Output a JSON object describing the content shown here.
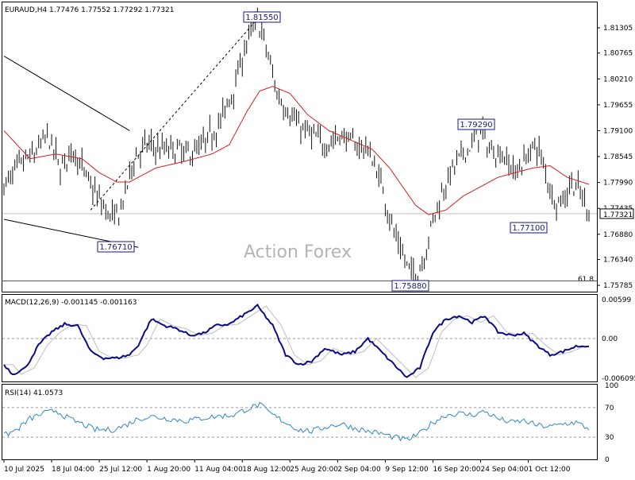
{
  "chart_data": [
    {
      "type": "candlestick",
      "symbol_header": "EURAUD,H4  1.77476 1.77552 1.77292 1.77321",
      "ylim": [
        1.7565,
        1.8185
      ],
      "y_ticks": [
        "1.81305",
        "1.80765",
        "1.80210",
        "1.79655",
        "1.79100",
        "1.78545",
        "1.77990",
        "1.77435",
        "1.76880",
        "1.76340",
        "1.75785"
      ],
      "current_price": "1.77321",
      "fib_label": "61.8",
      "fib_level": 1.7588,
      "watermark": "Action Forex",
      "annotations": [
        {
          "label": "1.81550",
          "value": 1.8155
        },
        {
          "label": "1.76710",
          "value": 1.7671
        },
        {
          "label": "1.75880",
          "value": 1.7588
        },
        {
          "label": "1.79290",
          "value": 1.7929
        },
        {
          "label": "1.77100",
          "value": 1.771
        }
      ],
      "close_keypoints": [
        [
          0,
          1.779
        ],
        [
          8,
          1.784
        ],
        [
          14,
          1.786
        ],
        [
          20,
          1.79
        ],
        [
          26,
          1.783
        ],
        [
          32,
          1.787
        ],
        [
          38,
          1.781
        ],
        [
          44,
          1.776
        ],
        [
          50,
          1.772
        ],
        [
          54,
          1.774
        ],
        [
          60,
          1.785
        ],
        [
          66,
          1.788
        ],
        [
          72,
          1.787
        ],
        [
          78,
          1.787
        ],
        [
          86,
          1.786
        ],
        [
          92,
          1.788
        ],
        [
          100,
          1.793
        ],
        [
          106,
          1.8
        ],
        [
          112,
          1.81
        ],
        [
          117,
          1.815
        ],
        [
          122,
          1.807
        ],
        [
          126,
          1.799
        ],
        [
          130,
          1.796
        ],
        [
          136,
          1.792
        ],
        [
          142,
          1.79
        ],
        [
          148,
          1.788
        ],
        [
          156,
          1.79
        ],
        [
          162,
          1.788
        ],
        [
          168,
          1.787
        ],
        [
          174,
          1.78
        ],
        [
          180,
          1.769
        ],
        [
          186,
          1.762
        ],
        [
          190,
          1.76
        ],
        [
          194,
          1.764
        ],
        [
          198,
          1.772
        ],
        [
          204,
          1.78
        ],
        [
          210,
          1.785
        ],
        [
          216,
          1.788
        ],
        [
          220,
          1.791
        ],
        [
          224,
          1.787
        ],
        [
          230,
          1.786
        ],
        [
          236,
          1.782
        ],
        [
          242,
          1.786
        ],
        [
          246,
          1.788
        ],
        [
          250,
          1.782
        ],
        [
          254,
          1.776
        ],
        [
          258,
          1.776
        ],
        [
          262,
          1.78
        ],
        [
          266,
          1.7775
        ],
        [
          270,
          1.7735
        ]
      ],
      "ma_keypoints": [
        [
          0,
          1.791
        ],
        [
          12,
          1.785
        ],
        [
          24,
          1.786
        ],
        [
          36,
          1.785
        ],
        [
          44,
          1.782
        ],
        [
          52,
          1.78
        ],
        [
          58,
          1.78
        ],
        [
          70,
          1.783
        ],
        [
          84,
          1.7845
        ],
        [
          96,
          1.786
        ],
        [
          104,
          1.788
        ],
        [
          112,
          1.795
        ],
        [
          118,
          1.7995
        ],
        [
          124,
          1.8005
        ],
        [
          132,
          1.799
        ],
        [
          140,
          1.7945
        ],
        [
          150,
          1.791
        ],
        [
          160,
          1.789
        ],
        [
          170,
          1.787
        ],
        [
          178,
          1.783
        ],
        [
          184,
          1.779
        ],
        [
          190,
          1.775
        ],
        [
          196,
          1.773
        ],
        [
          204,
          1.774
        ],
        [
          212,
          1.777
        ],
        [
          220,
          1.779
        ],
        [
          228,
          1.781
        ],
        [
          236,
          1.782
        ],
        [
          244,
          1.783
        ],
        [
          252,
          1.7835
        ],
        [
          260,
          1.781
        ],
        [
          270,
          1.7795
        ]
      ],
      "trendlines": [
        {
          "name": "upper-channel",
          "points": [
            [
              0,
              1.807
            ],
            [
              58,
              1.791
            ]
          ]
        },
        {
          "name": "lower-channel",
          "points": [
            [
              0,
              1.772
            ],
            [
              62,
              1.766
            ]
          ]
        },
        {
          "name": "dashed-up",
          "points": [
            [
              40,
              1.774
            ],
            [
              118,
              1.8155
            ]
          ]
        }
      ],
      "x_labels": [
        "10 Jul 2025",
        "18 Jul 04:00",
        "25 Jul 12:00",
        "1 Aug 20:00",
        "11 Aug 04:00",
        "18 Aug 12:00",
        "25 Aug 20:00",
        "2 Sep 04:00",
        "9 Sep 12:00",
        "16 Sep 20:00",
        "24 Sep 04:00",
        "1 Oct 12:00"
      ],
      "x_label_bars": [
        0,
        22,
        44,
        66,
        88,
        110,
        132,
        154,
        176,
        198,
        220,
        242
      ],
      "n_bars": 271
    },
    {
      "type": "line",
      "name_header": "MACD(12,26,9) -0.001145 -0.001163",
      "ylim": [
        -0.0066,
        0.0066
      ],
      "y_ticks": [
        "0.00599",
        "0.00",
        "-0.006095"
      ],
      "macd_keypoints": [
        [
          0,
          -0.004
        ],
        [
          4,
          -0.0055
        ],
        [
          10,
          -0.0045
        ],
        [
          16,
          -0.001
        ],
        [
          22,
          0.001
        ],
        [
          28,
          0.0022
        ],
        [
          34,
          0.002
        ],
        [
          40,
          -0.002
        ],
        [
          46,
          -0.003
        ],
        [
          52,
          -0.003
        ],
        [
          58,
          -0.0025
        ],
        [
          62,
          -0.001
        ],
        [
          68,
          0.003
        ],
        [
          74,
          0.002
        ],
        [
          80,
          0.0015
        ],
        [
          86,
          0.0005
        ],
        [
          92,
          0.0008
        ],
        [
          98,
          0.002
        ],
        [
          104,
          0.0022
        ],
        [
          110,
          0.0035
        ],
        [
          117,
          0.005
        ],
        [
          124,
          0.002
        ],
        [
          130,
          -0.0025
        ],
        [
          136,
          -0.004
        ],
        [
          142,
          -0.0035
        ],
        [
          148,
          -0.0015
        ],
        [
          156,
          -0.0025
        ],
        [
          162,
          -0.002
        ],
        [
          168,
          0.0
        ],
        [
          174,
          -0.002
        ],
        [
          180,
          -0.004
        ],
        [
          186,
          -0.006
        ],
        [
          192,
          -0.0045
        ],
        [
          198,
          0.001
        ],
        [
          204,
          0.003
        ],
        [
          210,
          0.0035
        ],
        [
          216,
          0.0025
        ],
        [
          222,
          0.0035
        ],
        [
          228,
          0.001
        ],
        [
          234,
          0.0005
        ],
        [
          240,
          0.0008
        ],
        [
          246,
          -0.001
        ],
        [
          252,
          -0.0025
        ],
        [
          258,
          -0.002
        ],
        [
          264,
          -0.0012
        ],
        [
          270,
          -0.0011
        ]
      ],
      "signal_lag": 4
    },
    {
      "type": "line",
      "name_header": "RSI(14) 41.0573",
      "ylim": [
        0,
        100
      ],
      "y_ticks": [
        "100",
        "70",
        "30",
        "0"
      ],
      "levels": [
        70,
        30
      ],
      "rsi_keypoints": [
        [
          0,
          32
        ],
        [
          6,
          40
        ],
        [
          12,
          55
        ],
        [
          18,
          62
        ],
        [
          24,
          66
        ],
        [
          30,
          55
        ],
        [
          36,
          48
        ],
        [
          42,
          40
        ],
        [
          50,
          40
        ],
        [
          56,
          46
        ],
        [
          62,
          55
        ],
        [
          68,
          58
        ],
        [
          76,
          55
        ],
        [
          84,
          52
        ],
        [
          92,
          56
        ],
        [
          98,
          58
        ],
        [
          106,
          60
        ],
        [
          112,
          68
        ],
        [
          118,
          74
        ],
        [
          124,
          60
        ],
        [
          130,
          50
        ],
        [
          136,
          40
        ],
        [
          142,
          38
        ],
        [
          150,
          45
        ],
        [
          156,
          48
        ],
        [
          162,
          42
        ],
        [
          168,
          38
        ],
        [
          174,
          35
        ],
        [
          180,
          30
        ],
        [
          186,
          26
        ],
        [
          192,
          35
        ],
        [
          198,
          50
        ],
        [
          204,
          60
        ],
        [
          210,
          62
        ],
        [
          216,
          60
        ],
        [
          222,
          65
        ],
        [
          228,
          55
        ],
        [
          234,
          50
        ],
        [
          240,
          52
        ],
        [
          246,
          46
        ],
        [
          252,
          44
        ],
        [
          258,
          48
        ],
        [
          264,
          50
        ],
        [
          270,
          41
        ]
      ]
    }
  ]
}
